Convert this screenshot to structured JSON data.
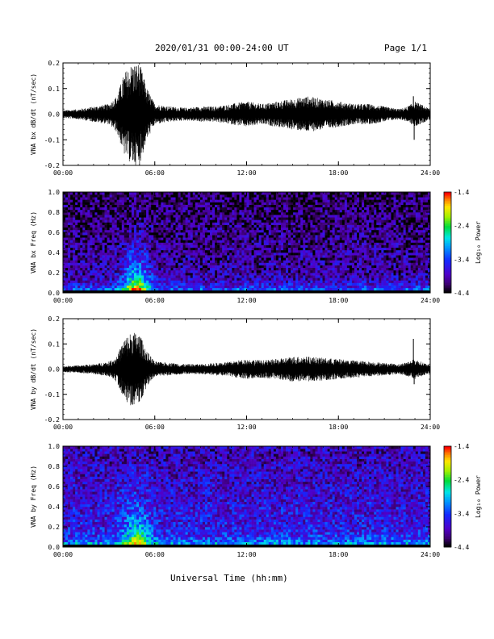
{
  "header": {
    "title": "2020/01/31  00:00-24:00 UT",
    "page": "Page 1/1"
  },
  "footer": {
    "xlabel": "Universal Time (hh:mm)"
  },
  "chart_data": [
    {
      "type": "line",
      "ylabel": "VNA bx dB/dt (nT/sec)",
      "xlim": [
        0,
        24
      ],
      "ylim": [
        -0.2,
        0.2
      ],
      "x_ticks": [
        "00:00",
        "06:00",
        "12:00",
        "18:00",
        "24:00"
      ],
      "y_ticks": [
        "-0.2",
        "-0.1",
        "0.0",
        "0.1",
        "0.2"
      ],
      "envelope": {
        "x_hours": [
          0,
          1,
          2,
          3,
          3.5,
          4,
          4.5,
          5,
          5.5,
          6,
          7,
          8,
          9,
          10,
          11,
          12,
          13,
          14,
          15,
          16,
          17,
          18,
          19,
          20,
          21,
          22,
          22.5,
          23,
          24
        ],
        "amplitude": [
          0.015,
          0.02,
          0.03,
          0.04,
          0.07,
          0.16,
          0.2,
          0.2,
          0.1,
          0.04,
          0.03,
          0.025,
          0.03,
          0.03,
          0.04,
          0.05,
          0.04,
          0.05,
          0.06,
          0.07,
          0.06,
          0.05,
          0.04,
          0.04,
          0.03,
          0.02,
          0.03,
          0.05,
          0.02
        ]
      },
      "spikes": [
        {
          "x": 22.9,
          "y": 0.07
        },
        {
          "x": 22.95,
          "y": -0.1
        }
      ]
    },
    {
      "type": "heatmap",
      "ylabel": "VNA bx Freq (Hz)",
      "xlim": [
        0,
        24
      ],
      "ylim": [
        0.0,
        1.0
      ],
      "x_ticks": [
        "00:00",
        "06:00",
        "12:00",
        "18:00",
        "24:00"
      ],
      "y_ticks": [
        "0.0",
        "0.2",
        "0.4",
        "0.6",
        "0.8",
        "1.0"
      ],
      "colorbar": {
        "label": "Log₁₀ Power",
        "range": [
          -4.4,
          -1.4
        ],
        "ticks": [
          "-1.4",
          "-2.4",
          "-3.4",
          "-4.4"
        ]
      },
      "storm_center_hours": 4.8,
      "storm_peak_power": -1.8,
      "background_power": -3.9
    },
    {
      "type": "line",
      "ylabel": "VNA by dB/dt (nT/sec)",
      "xlim": [
        0,
        24
      ],
      "ylim": [
        -0.2,
        0.2
      ],
      "x_ticks": [
        "00:00",
        "06:00",
        "12:00",
        "18:00",
        "24:00"
      ],
      "y_ticks": [
        "-0.2",
        "-0.1",
        "0.0",
        "0.1",
        "0.2"
      ],
      "envelope": {
        "x_hours": [
          0,
          1,
          2,
          3,
          3.5,
          4,
          4.5,
          5,
          5.5,
          6,
          7,
          8,
          9,
          10,
          11,
          12,
          13,
          14,
          15,
          16,
          17,
          18,
          19,
          20,
          21,
          22,
          22.5,
          23,
          24
        ],
        "amplitude": [
          0.012,
          0.015,
          0.02,
          0.03,
          0.05,
          0.12,
          0.15,
          0.14,
          0.07,
          0.03,
          0.025,
          0.02,
          0.02,
          0.025,
          0.03,
          0.04,
          0.035,
          0.04,
          0.05,
          0.05,
          0.045,
          0.04,
          0.035,
          0.03,
          0.025,
          0.02,
          0.03,
          0.04,
          0.015
        ]
      },
      "spikes": [
        {
          "x": 22.9,
          "y": 0.12
        },
        {
          "x": 22.95,
          "y": -0.06
        }
      ]
    },
    {
      "type": "heatmap",
      "ylabel": "VNA by Freq (Hz)",
      "xlim": [
        0,
        24
      ],
      "ylim": [
        0.0,
        1.0
      ],
      "x_ticks": [
        "00:00",
        "06:00",
        "12:00",
        "18:00",
        "24:00"
      ],
      "y_ticks": [
        "0.0",
        "0.2",
        "0.4",
        "0.6",
        "0.8",
        "1.0"
      ],
      "colorbar": {
        "label": "Log₁₀ Power",
        "range": [
          -4.4,
          -1.4
        ],
        "ticks": [
          "-1.4",
          "-2.4",
          "-3.4",
          "-4.4"
        ]
      },
      "storm_center_hours": 4.8,
      "storm_peak_power": -2.0,
      "background_power": -3.6
    }
  ]
}
